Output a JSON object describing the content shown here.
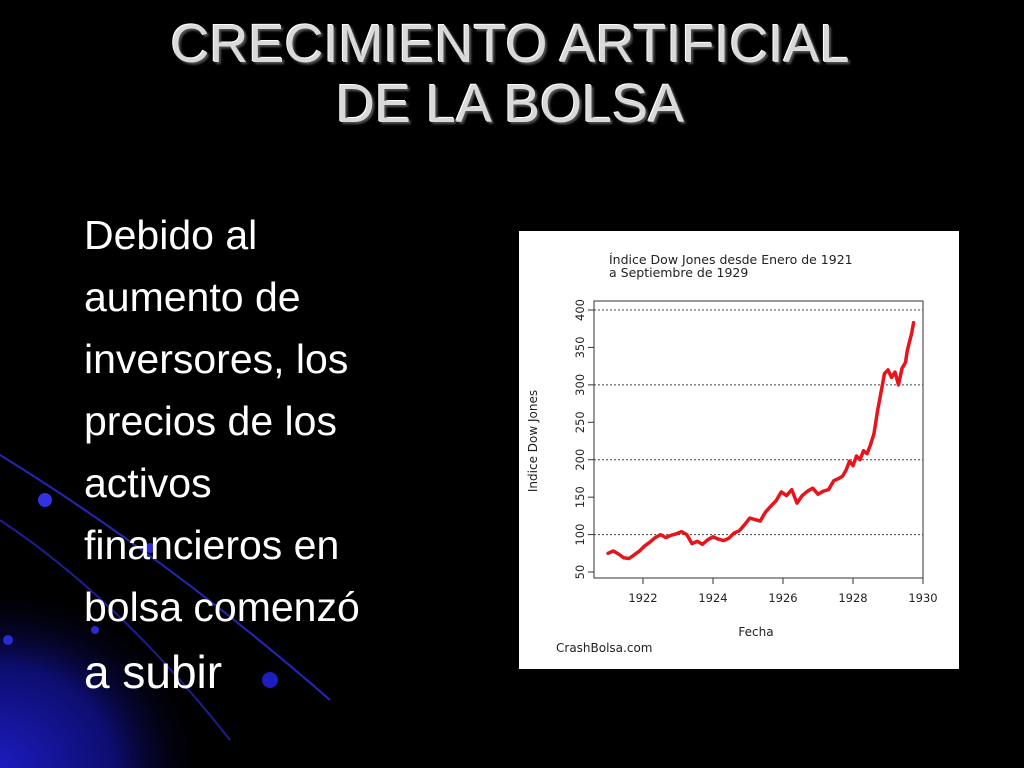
{
  "slide": {
    "title_lines": [
      "CRECIMIENTO ARTIFICIAL",
      "DE LA BOLSA"
    ],
    "body_lines": [
      "Debido al",
      "aumento  de",
      "inversores,  los",
      "precios de los",
      "activos",
      "financieros en",
      "bolsa comenzó",
      "a subir"
    ],
    "colors": {
      "background": "#000000",
      "accent": "#1a1aa8",
      "title": "#d9d9d9",
      "text": "#ffffff"
    }
  },
  "chart_data": {
    "type": "line",
    "title_lines": [
      "Índice Dow Jones desde Enero de 1921",
      "a Septiembre de 1929"
    ],
    "xlabel": "Fecha",
    "ylabel": "Indice Dow Jones",
    "source": "CrashBolsa.com",
    "xlim": [
      1920.6,
      1930.0
    ],
    "ylim": [
      42,
      412
    ],
    "xticks": [
      1922,
      1924,
      1926,
      1928,
      1930
    ],
    "yticks": [
      50,
      100,
      150,
      200,
      250,
      300,
      350,
      400
    ],
    "grid_y": [
      100,
      200,
      300,
      400
    ],
    "line_color": "#e8141c",
    "series": [
      {
        "x": [
          1921.0,
          1921.15,
          1921.3,
          1921.45,
          1921.6,
          1921.75,
          1921.9,
          1922.05,
          1922.2,
          1922.35,
          1922.5,
          1922.65,
          1922.8,
          1922.95,
          1923.1,
          1923.25,
          1923.4,
          1923.55,
          1923.7,
          1923.85,
          1924.0,
          1924.15,
          1924.3,
          1924.45,
          1924.6,
          1924.75,
          1924.9,
          1925.05,
          1925.2,
          1925.35,
          1925.5,
          1925.65,
          1925.8,
          1925.95,
          1926.1,
          1926.25,
          1926.4,
          1926.55,
          1926.7,
          1926.85,
          1927.0,
          1927.15,
          1927.3,
          1927.45,
          1927.6,
          1927.7,
          1927.8,
          1927.9,
          1928.0,
          1928.1,
          1928.2,
          1928.3,
          1928.4,
          1928.5,
          1928.6,
          1928.7,
          1928.8,
          1928.9,
          1929.0,
          1929.1,
          1929.2,
          1929.3,
          1929.4,
          1929.5,
          1929.55,
          1929.6,
          1929.67,
          1929.73
        ],
        "y": [
          75,
          78,
          74,
          69,
          68,
          73,
          78,
          85,
          90,
          96,
          100,
          96,
          99,
          101,
          104,
          100,
          88,
          91,
          87,
          93,
          97,
          94,
          92,
          95,
          102,
          105,
          113,
          122,
          120,
          118,
          130,
          138,
          145,
          157,
          152,
          160,
          142,
          152,
          158,
          162,
          154,
          158,
          160,
          172,
          175,
          178,
          186,
          198,
          192,
          205,
          200,
          212,
          208,
          220,
          235,
          265,
          290,
          315,
          320,
          310,
          317,
          300,
          322,
          330,
          345,
          355,
          368,
          383
        ]
      }
    ]
  }
}
